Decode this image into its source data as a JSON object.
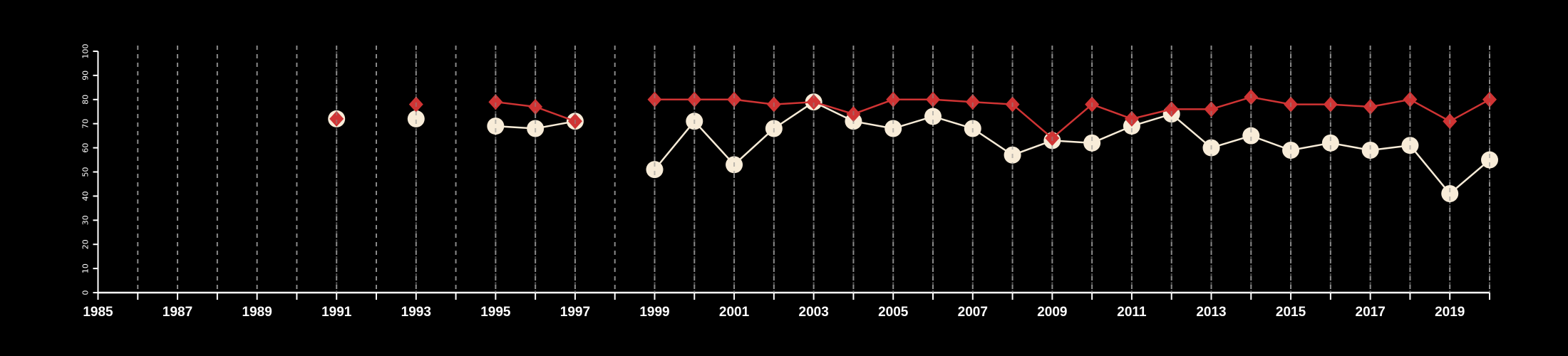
{
  "chart_data": {
    "type": "line",
    "title": "",
    "xlabel": "",
    "ylabel": "",
    "xlim": [
      1985,
      2020
    ],
    "ylim": [
      0,
      100
    ],
    "grid": "vertical dashed lines at every year",
    "x_tick_labels": [
      "1985",
      "1987",
      "1989",
      "1991",
      "1993",
      "1995",
      "1997",
      "1999",
      "2001",
      "2003",
      "2005",
      "2007",
      "2009",
      "2011",
      "2013",
      "2015",
      "2017",
      "2019"
    ],
    "y_tick_labels": [
      "0",
      "10",
      "20",
      "30",
      "40",
      "50",
      "60",
      "70",
      "80",
      "90",
      "100"
    ],
    "x": [
      1991,
      1993,
      1995,
      1996,
      1997,
      1999,
      2000,
      2001,
      2002,
      2003,
      2004,
      2005,
      2006,
      2007,
      2008,
      2009,
      2010,
      2011,
      2012,
      2013,
      2014,
      2015,
      2016,
      2017,
      2018,
      2019,
      2020
    ],
    "series": [
      {
        "name": "cream circles",
        "color": "#f8ecd8",
        "marker": "circle",
        "values": [
          72,
          72,
          69,
          68,
          71,
          51,
          71,
          53,
          68,
          79,
          71,
          68,
          73,
          68,
          57,
          63,
          62,
          69,
          74,
          60,
          65,
          59,
          62,
          59,
          61,
          41,
          55
        ]
      },
      {
        "name": "red diamonds",
        "color": "#d03434",
        "marker": "diamond",
        "values": [
          72,
          78,
          79,
          77,
          71,
          80,
          80,
          80,
          78,
          79,
          74,
          80,
          80,
          79,
          78,
          64,
          78,
          72,
          76,
          76,
          81,
          78,
          78,
          77,
          80,
          71,
          80
        ]
      }
    ]
  }
}
